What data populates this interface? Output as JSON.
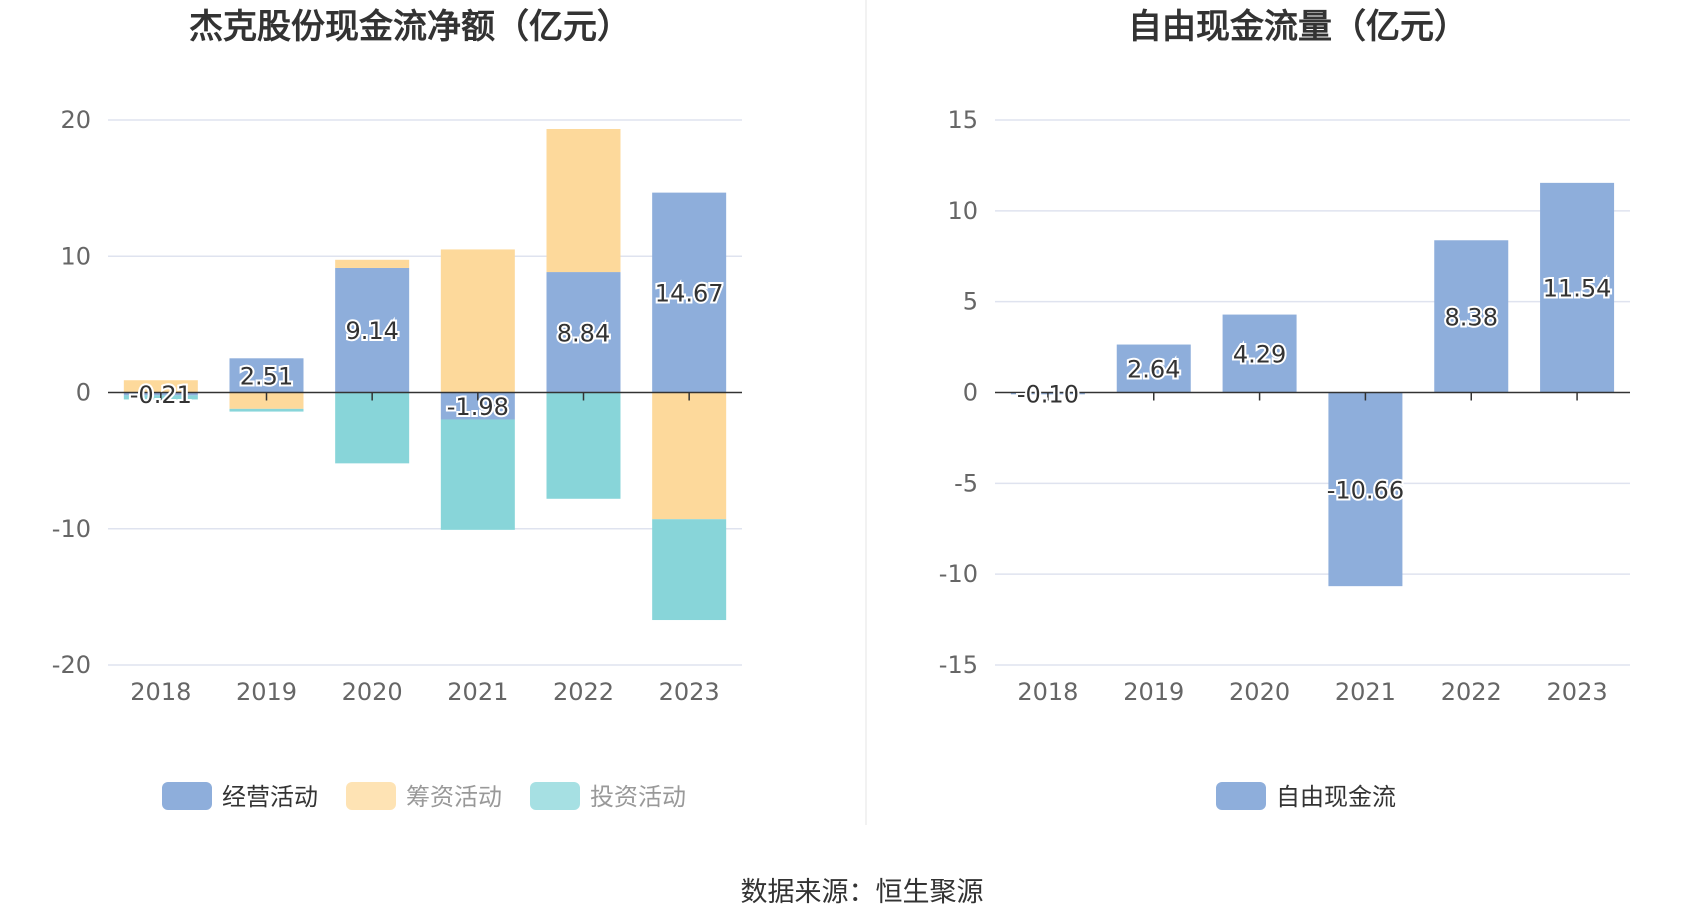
{
  "chart_data": [
    {
      "type": "bar",
      "stacked": true,
      "title": "杰克股份现金流净额（亿元）",
      "categories": [
        "2018",
        "2019",
        "2020",
        "2021",
        "2022",
        "2023"
      ],
      "ylim": [
        -20,
        20
      ],
      "yticks": [
        20,
        10,
        0,
        -10,
        -20
      ],
      "grid": true,
      "legend_position": "bottom",
      "series": [
        {
          "name": "经营活动",
          "color": "#8eaedb",
          "values": [
            -0.21,
            2.51,
            9.14,
            -1.98,
            8.84,
            14.67
          ],
          "labels": [
            "-0.21",
            "2.51",
            "9.14",
            "-1.98",
            "8.84",
            "14.67"
          ]
        },
        {
          "name": "筹资活动",
          "color": "#fdd99b",
          "values": [
            0.9,
            -1.2,
            0.6,
            10.5,
            10.5,
            -9.3
          ]
        },
        {
          "name": "投资活动",
          "color": "#88d5d9",
          "values": [
            -0.3,
            -0.2,
            -5.2,
            -8.1,
            -7.8,
            -7.4
          ]
        }
      ]
    },
    {
      "type": "bar",
      "title": "自由现金流量（亿元）",
      "categories": [
        "2018",
        "2019",
        "2020",
        "2021",
        "2022",
        "2023"
      ],
      "ylim": [
        -15,
        15
      ],
      "yticks": [
        15,
        10,
        5,
        0,
        -5,
        -10,
        -15
      ],
      "grid": true,
      "legend_position": "bottom",
      "series": [
        {
          "name": "自由现金流",
          "color": "#8eaedb",
          "values": [
            -0.1,
            2.64,
            4.29,
            -10.66,
            8.38,
            11.54
          ],
          "labels": [
            "-0.10",
            "2.64",
            "4.29",
            "-10.66",
            "8.38",
            "11.54"
          ]
        }
      ]
    }
  ],
  "source_text": "数据来源：恒生聚源",
  "colors": {
    "grid": "#dfe3ef",
    "axis": "#333333",
    "divider": "#eeeeee",
    "legend_inactive": "#999999"
  }
}
